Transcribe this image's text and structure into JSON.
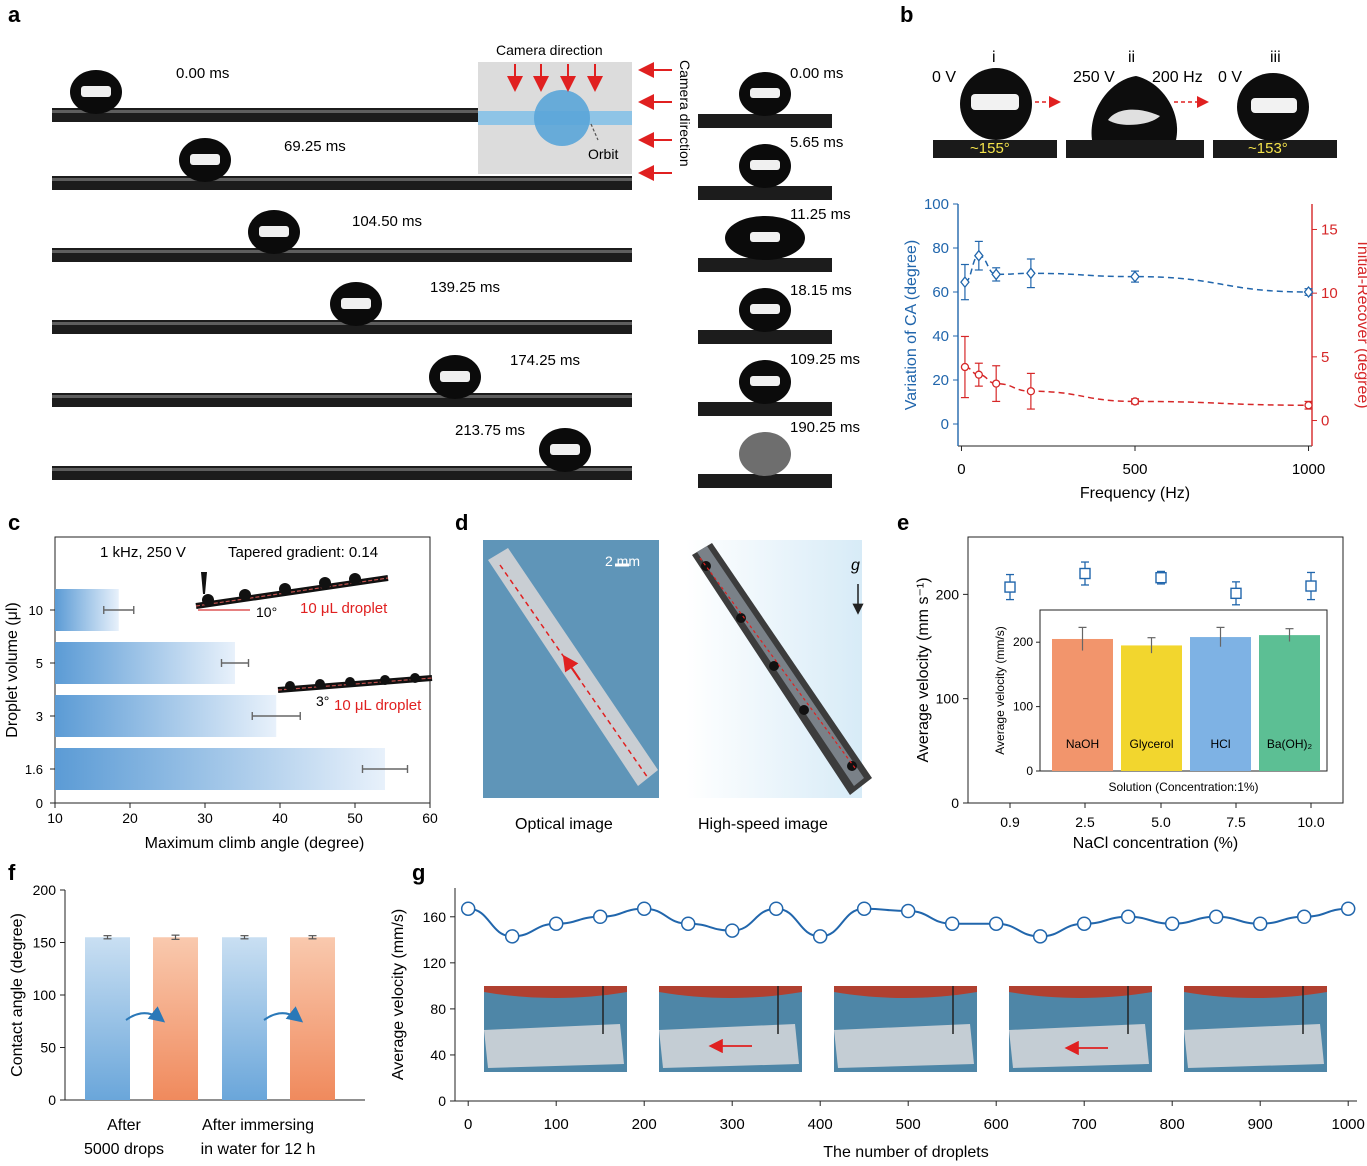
{
  "panels": {
    "a": {
      "letter": "a",
      "times_left": [
        "0.00 ms",
        "69.25 ms",
        "104.50 ms",
        "139.25 ms",
        "174.25 ms",
        "213.75 ms"
      ],
      "times_right": [
        "0.00 ms",
        "5.65 ms",
        "11.25 ms",
        "18.15 ms",
        "109.25 ms",
        "190.25 ms"
      ],
      "inset_title": "Camera direction",
      "inset_side": "Camera direction",
      "inset_orbit": "Orbit"
    },
    "b": {
      "letter": "b",
      "roman": [
        "i",
        "ii",
        "iii"
      ],
      "volt_i": "0 V",
      "volt_ii": "250 V",
      "freq_ii": "200 Hz",
      "volt_iii": "0 V",
      "angle_i": "~155°",
      "angle_iii": "~153°"
    },
    "c": {
      "letter": "c",
      "note_left": "1 kHz, 250 V",
      "note_right": "Tapered gradient: 0.14",
      "droplet_label_1": "10 μL droplet",
      "droplet_label_2": "10 μL droplet",
      "angle_1": "10°",
      "angle_2": "3°"
    },
    "d": {
      "letter": "d",
      "scale": "2 mm",
      "gravity": "g",
      "caption_left": "Optical image",
      "caption_right": "High-speed image"
    },
    "e": {
      "letter": "e"
    },
    "f": {
      "letter": "f",
      "group1_line1": "After",
      "group1_line2": "5000 drops",
      "group2_line1": "After immersing",
      "group2_line2": "in water for 12 h"
    },
    "g": {
      "letter": "g"
    }
  },
  "colors": {
    "blue": "#2166ac",
    "red": "#d62728",
    "bar_blue": "#6fa8dc",
    "bar_orange": "#f08a5d"
  },
  "chart_data": [
    {
      "id": "b",
      "type": "line",
      "xlabel": "Frequency (Hz)",
      "ylabel": "Variation of CA (degree)",
      "y2label": "Initial-Recover (degree)",
      "xlim": [
        -10,
        1010
      ],
      "ylim": [
        -10,
        100
      ],
      "y2lim": [
        -2,
        17
      ],
      "xticks": [
        0,
        500,
        1000
      ],
      "yticks": [
        0,
        20,
        40,
        60,
        80,
        100
      ],
      "y2ticks": [
        0,
        5,
        10,
        15
      ],
      "series": [
        {
          "axis": "left",
          "x": [
            10,
            50,
            100,
            200,
            500,
            1000
          ],
          "y": [
            64.5,
            76.5,
            68,
            68.5,
            67,
            60
          ],
          "err": [
            8,
            6.5,
            3,
            6.5,
            2.5,
            1.5
          ]
        },
        {
          "axis": "right",
          "x": [
            10,
            50,
            100,
            200,
            500,
            1000
          ],
          "y": [
            4.2,
            3.6,
            2.9,
            2.3,
            1.5,
            1.2
          ],
          "err": [
            2.4,
            0.9,
            1.4,
            1.4,
            0.2,
            0.3
          ]
        }
      ]
    },
    {
      "id": "c",
      "type": "bar",
      "orientation": "horizontal",
      "xlabel": "Maximum climb angle (degree)",
      "ylabel": "Droplet volume (μl)",
      "xlim": [
        10,
        60
      ],
      "xticks": [
        10,
        20,
        30,
        40,
        50,
        60
      ],
      "categories": [
        "0",
        "1.6",
        "3",
        "5",
        "10"
      ],
      "values": [
        null,
        54,
        39.5,
        34,
        18.5
      ],
      "err": [
        null,
        3,
        3.2,
        1.8,
        2
      ]
    },
    {
      "id": "e",
      "type": "scatter",
      "xlabel": "NaCl concentration (%)",
      "ylabel": "Average velocity (mm s⁻¹)",
      "ylim": [
        0,
        255
      ],
      "yticks": [
        0,
        100,
        200
      ],
      "categories": [
        "0.9",
        "2.5",
        "5.0",
        "7.5",
        "10.0"
      ],
      "values": [
        207,
        220,
        216,
        201,
        208
      ],
      "err": [
        12,
        11,
        6,
        11,
        13
      ],
      "inset": {
        "type": "bar",
        "xlabel": "Solution (Concentration:1%)",
        "ylabel": "Average velocity (mm/s)",
        "ylim": [
          0,
          250
        ],
        "yticks": [
          0,
          100,
          200
        ],
        "categories": [
          "NaOH",
          "Glycerol",
          "HCl",
          "Ba(OH)₂"
        ],
        "values": [
          205,
          195,
          208,
          211
        ],
        "err": [
          18,
          12,
          15,
          10
        ],
        "colors": [
          "#f2956c",
          "#f2d62e",
          "#7eb2e4",
          "#5cbf94"
        ]
      }
    },
    {
      "id": "f",
      "type": "bar",
      "ylabel": "Contact angle (degree)",
      "ylim": [
        0,
        200
      ],
      "yticks": [
        0,
        50,
        100,
        150,
        200
      ],
      "values": [
        155,
        155,
        155,
        155
      ],
      "err": [
        1.5,
        2,
        1.5,
        1.5
      ],
      "colors": [
        "#6fa8dc",
        "#f08a5d",
        "#6fa8dc",
        "#f08a5d"
      ]
    },
    {
      "id": "g",
      "type": "line",
      "xlabel": "The number of droplets",
      "ylabel": "Average velocity (mm/s)",
      "xlim": [
        -15,
        1010
      ],
      "ylim": [
        0,
        185
      ],
      "xticks": [
        0,
        100,
        200,
        300,
        400,
        500,
        600,
        700,
        800,
        900,
        1000
      ],
      "yticks": [
        0,
        40,
        80,
        120,
        160
      ],
      "x": [
        0,
        50,
        100,
        150,
        200,
        250,
        300,
        350,
        400,
        450,
        500,
        550,
        600,
        650,
        700,
        750,
        800,
        850,
        900,
        950,
        1000
      ],
      "y": [
        167,
        143,
        154,
        160,
        167,
        154,
        148,
        167,
        143,
        167,
        165,
        154,
        154,
        143,
        154,
        160,
        154,
        160,
        154,
        160,
        167
      ]
    }
  ]
}
